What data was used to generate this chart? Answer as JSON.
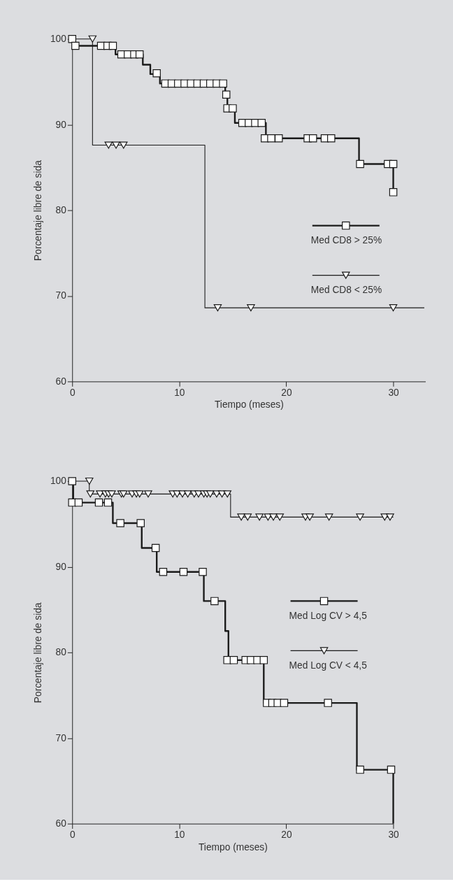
{
  "chart_data": [
    {
      "type": "step",
      "xlabel": "Tiempo (meses)",
      "ylabel": "Porcentaje libre de sida",
      "xlim": [
        0,
        33
      ],
      "xticks": [
        0,
        10,
        20,
        30
      ],
      "ylim": [
        60,
        100
      ],
      "yticks": [
        60,
        70,
        80,
        90,
        100
      ],
      "legend": "right",
      "series": [
        {
          "name": "Med CD8 > 25%",
          "color": "#1a1a1a",
          "x": [
            0,
            0.1,
            4.05,
            6.6,
            7.3,
            8.2,
            14.3,
            14.5,
            15.2,
            18.1,
            26.8,
            30
          ],
          "values": [
            100,
            99.2,
            98.2,
            97.0,
            95.9,
            94.8,
            93.5,
            91.9,
            90.2,
            88.4,
            85.4,
            82.1
          ]
        },
        {
          "type": "scatter",
          "marker": "square",
          "color": "#1a1a1a",
          "x": [
            0,
            0.3,
            2.7,
            3.3,
            3.8,
            4.6,
            5.2,
            5.8,
            6.3,
            7.9,
            8.7,
            9.3,
            9.9,
            10.5,
            11.1,
            11.7,
            12.3,
            12.9,
            13.5,
            14.1,
            14.4,
            14.5,
            15.0,
            15.9,
            16.5,
            17.1,
            17.7,
            18.0,
            18.6,
            19.3,
            22.0,
            22.5,
            23.6,
            24.2,
            26.9,
            29.5,
            30.0,
            30.0
          ],
          "values": [
            100,
            99.2,
            99.2,
            99.2,
            99.2,
            98.2,
            98.2,
            98.2,
            98.2,
            96.0,
            94.8,
            94.8,
            94.8,
            94.8,
            94.8,
            94.8,
            94.8,
            94.8,
            94.8,
            94.8,
            93.5,
            91.9,
            91.9,
            90.2,
            90.2,
            90.2,
            90.2,
            88.4,
            88.4,
            88.4,
            88.4,
            88.4,
            88.4,
            88.4,
            85.4,
            85.4,
            85.4,
            82.1
          ]
        },
        {
          "name": "Med CD8 < 25%",
          "color": "#1a1a1a",
          "x": [
            0,
            1.9,
            12.4,
            32.9
          ],
          "values": [
            100,
            87.6,
            68.6,
            68.6
          ]
        },
        {
          "type": "scatter",
          "marker": "triangle",
          "color": "#1a1a1a",
          "x": [
            1.9,
            3.4,
            4.1,
            4.8,
            13.6,
            16.7,
            30.0
          ],
          "values": [
            100,
            87.6,
            87.6,
            87.6,
            68.6,
            68.6,
            68.6
          ]
        }
      ]
    },
    {
      "type": "step",
      "xlabel": "Tiempo (meses)",
      "ylabel": "Porcentaje libre de sida",
      "xlim": [
        0,
        30
      ],
      "xticks": [
        0,
        10,
        20,
        30
      ],
      "ylim": [
        60,
        100
      ],
      "yticks": [
        60,
        70,
        80,
        90,
        100
      ],
      "legend": "right",
      "series": [
        {
          "name": "Med Log CV > 4,5",
          "color": "#1a1a1a",
          "x": [
            0,
            0.1,
            3.8,
            6.5,
            7.9,
            12.3,
            14.3,
            14.6,
            17.9,
            26.6,
            30
          ],
          "values": [
            100,
            97.5,
            95.1,
            92.2,
            89.4,
            86.0,
            82.5,
            79.1,
            74.1,
            66.3,
            60
          ]
        },
        {
          "type": "scatter",
          "marker": "square",
          "color": "#1a1a1a",
          "x": [
            0,
            0,
            0.6,
            2.5,
            3.35,
            4.5,
            6.4,
            7.8,
            8.5,
            10.4,
            12.2,
            13.3,
            14.5,
            15.1,
            16.2,
            16.7,
            17.3,
            17.9,
            18.2,
            18.7,
            19.2,
            19.8,
            23.9,
            26.9,
            29.8
          ],
          "values": [
            100,
            97.5,
            97.5,
            97.5,
            97.5,
            95.1,
            95.1,
            92.2,
            89.4,
            89.4,
            89.4,
            86.0,
            79.1,
            79.1,
            79.1,
            79.1,
            79.1,
            79.1,
            74.1,
            74.1,
            74.1,
            74.1,
            74.1,
            66.3,
            66.3
          ]
        },
        {
          "name": "Med Log CV < 4,5",
          "color": "#1a1a1a",
          "x": [
            0,
            1.6,
            14.8,
            30
          ],
          "values": [
            100,
            98.5,
            95.8,
            95.8
          ]
        },
        {
          "type": "scatter",
          "marker": "triangle",
          "color": "#1a1a1a",
          "x": [
            1.6,
            1.7,
            2.6,
            3.1,
            3.4,
            3.7,
            4.6,
            4.8,
            5.6,
            6.0,
            6.3,
            7.1,
            9.4,
            9.8,
            10.3,
            10.8,
            11.4,
            11.8,
            12.3,
            12.6,
            12.9,
            13.5,
            14.0,
            14.5,
            15.8,
            16.4,
            17.5,
            18.3,
            18.8,
            19.4,
            21.8,
            22.2,
            24.0,
            26.9,
            29.2,
            29.7
          ],
          "values": [
            100,
            98.5,
            98.5,
            98.5,
            98.5,
            98.5,
            98.5,
            98.5,
            98.5,
            98.5,
            98.5,
            98.5,
            98.5,
            98.5,
            98.5,
            98.5,
            98.5,
            98.5,
            98.5,
            98.5,
            98.5,
            98.5,
            98.5,
            98.5,
            95.8,
            95.8,
            95.8,
            95.8,
            95.8,
            95.8,
            95.8,
            95.8,
            95.8,
            95.8,
            95.8,
            95.8
          ]
        }
      ]
    }
  ]
}
